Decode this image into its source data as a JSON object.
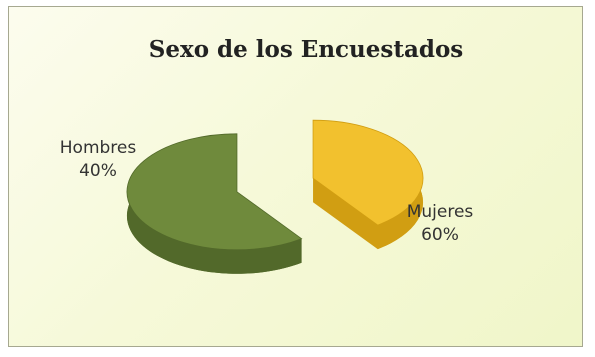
{
  "chart_data": {
    "type": "pie",
    "title": "Sexo de los Encuestados",
    "categories": [
      "Hombres",
      "Mujeres"
    ],
    "values": [
      40,
      60
    ],
    "value_labels": [
      "40%",
      "60%"
    ],
    "colors": [
      "#f2c12e",
      "#6f8a3c"
    ],
    "side_colors": [
      "#d19e12",
      "#52692a"
    ],
    "style": "3d-exploded-pie",
    "legend": "none"
  }
}
